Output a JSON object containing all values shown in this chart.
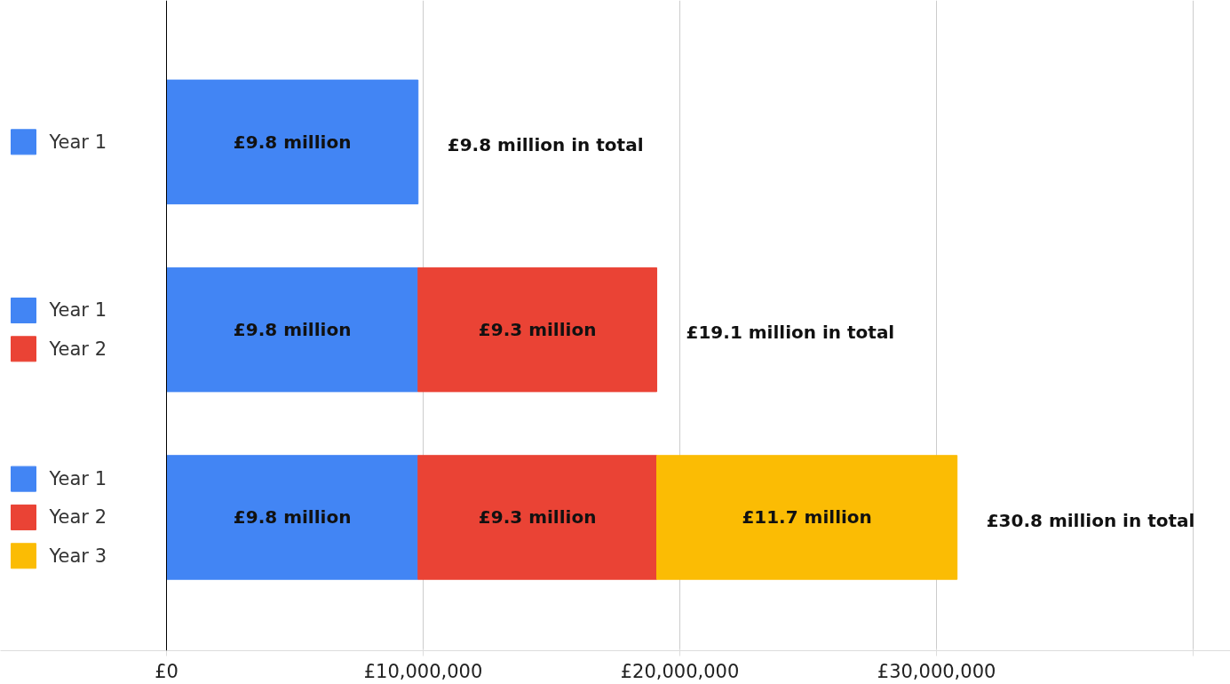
{
  "chart_data": {
    "type": "bar",
    "orientation": "horizontal",
    "stacked": true,
    "categories": [
      null,
      null,
      null
    ],
    "series": [
      {
        "name": "Year 1",
        "color": "#4285f4",
        "values": [
          9800000,
          9800000,
          9800000
        ],
        "value_labels": [
          "£9.8 million",
          "£9.8 million",
          "£9.8 million"
        ]
      },
      {
        "name": "Year 2",
        "color": "#ea4335",
        "values": [
          null,
          9300000,
          9300000
        ],
        "value_labels": [
          null,
          "£9.3 million",
          "£9.3 million"
        ]
      },
      {
        "name": "Year 3",
        "color": "#fbbc04",
        "values": [
          null,
          null,
          11700000
        ],
        "value_labels": [
          null,
          null,
          "£11.7 million"
        ]
      }
    ],
    "totals": [
      "£9.8 million in total",
      "£19.1 million in total",
      "£30.8 million in total"
    ],
    "xlim": [
      0,
      41450000
    ],
    "xticks": [
      {
        "value": 0,
        "label": "£0"
      },
      {
        "value": 10000000,
        "label": "£10,000,000"
      },
      {
        "value": 20000000,
        "label": "£20,000,000"
      },
      {
        "value": 30000000,
        "label": "£30,000,000"
      },
      {
        "value": 40000000,
        "label": null
      }
    ],
    "grid": "x",
    "legend": "left"
  }
}
